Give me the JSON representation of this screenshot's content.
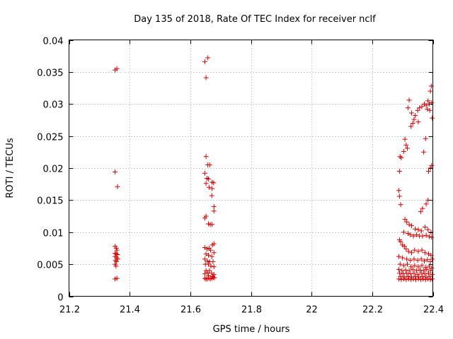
{
  "chart_data": {
    "type": "scatter",
    "title": "Day 135 of 2018, Rate Of TEC Index for receiver nclf",
    "xlabel": "GPS time / hours",
    "ylabel": "ROTI / TECUs",
    "xlim": [
      21.2,
      22.4
    ],
    "ylim": [
      0,
      0.04
    ],
    "grid": true,
    "marker": "+",
    "color": "#d40000",
    "x_ticks": [
      21.2,
      21.4,
      21.6,
      21.8,
      22,
      22.2,
      22.4
    ],
    "x_tick_labels": [
      "21.2",
      "21.4",
      "21.6",
      "21.8",
      "22",
      "22.2",
      "22.4"
    ],
    "y_ticks": [
      0,
      0.005,
      0.01,
      0.015,
      0.02,
      0.025,
      0.03,
      0.035,
      0.04
    ],
    "y_tick_labels": [
      "0",
      "0.005",
      "0.01",
      "0.015",
      "0.02",
      "0.025",
      "0.03",
      "0.035",
      "0.04"
    ],
    "series": [
      {
        "name": "ROTI",
        "points": [
          [
            21.352,
            0.0353
          ],
          [
            21.358,
            0.0355
          ],
          [
            21.352,
            0.0194
          ],
          [
            21.36,
            0.0171
          ],
          [
            21.352,
            0.0078
          ],
          [
            21.356,
            0.0075
          ],
          [
            21.358,
            0.0072
          ],
          [
            21.352,
            0.0067
          ],
          [
            21.355,
            0.0066
          ],
          [
            21.36,
            0.0065
          ],
          [
            21.352,
            0.0062
          ],
          [
            21.357,
            0.006
          ],
          [
            21.361,
            0.0058
          ],
          [
            21.353,
            0.0056
          ],
          [
            21.356,
            0.0054
          ],
          [
            21.352,
            0.005
          ],
          [
            21.355,
            0.0047
          ],
          [
            21.352,
            0.0027
          ],
          [
            21.358,
            0.0028
          ],
          [
            21.648,
            0.0366
          ],
          [
            21.658,
            0.0372
          ],
          [
            21.652,
            0.0341
          ],
          [
            21.652,
            0.0218
          ],
          [
            21.658,
            0.0205
          ],
          [
            21.664,
            0.0205
          ],
          [
            21.648,
            0.0192
          ],
          [
            21.655,
            0.0184
          ],
          [
            21.66,
            0.0183
          ],
          [
            21.672,
            0.0178
          ],
          [
            21.652,
            0.0176
          ],
          [
            21.677,
            0.0177
          ],
          [
            21.662,
            0.017
          ],
          [
            21.672,
            0.0168
          ],
          [
            21.671,
            0.0157
          ],
          [
            21.678,
            0.014
          ],
          [
            21.678,
            0.0133
          ],
          [
            21.652,
            0.0125
          ],
          [
            21.648,
            0.0122
          ],
          [
            21.66,
            0.0113
          ],
          [
            21.666,
            0.0112
          ],
          [
            21.672,
            0.0112
          ],
          [
            21.678,
            0.0082
          ],
          [
            21.673,
            0.008
          ],
          [
            21.648,
            0.0076
          ],
          [
            21.655,
            0.0074
          ],
          [
            21.662,
            0.0075
          ],
          [
            21.667,
            0.0072
          ],
          [
            21.678,
            0.0068
          ],
          [
            21.652,
            0.0066
          ],
          [
            21.66,
            0.0064
          ],
          [
            21.671,
            0.0062
          ],
          [
            21.648,
            0.0058
          ],
          [
            21.656,
            0.0055
          ],
          [
            21.664,
            0.0054
          ],
          [
            21.675,
            0.0054
          ],
          [
            21.65,
            0.005
          ],
          [
            21.66,
            0.005
          ],
          [
            21.668,
            0.0047
          ],
          [
            21.678,
            0.0046
          ],
          [
            21.652,
            0.004
          ],
          [
            21.663,
            0.004
          ],
          [
            21.648,
            0.0035
          ],
          [
            21.657,
            0.0037
          ],
          [
            21.67,
            0.0036
          ],
          [
            21.678,
            0.0034
          ],
          [
            21.66,
            0.0032
          ],
          [
            21.674,
            0.0031
          ],
          [
            21.648,
            0.0028
          ],
          [
            21.652,
            0.0027
          ],
          [
            21.656,
            0.0027
          ],
          [
            21.661,
            0.0028
          ],
          [
            21.666,
            0.0027
          ],
          [
            21.671,
            0.0028
          ],
          [
            21.676,
            0.0029
          ],
          [
            21.68,
            0.0029
          ],
          [
            22.395,
            0.0328
          ],
          [
            22.392,
            0.032
          ],
          [
            22.384,
            0.0305
          ],
          [
            22.378,
            0.0298
          ],
          [
            22.388,
            0.03
          ],
          [
            22.396,
            0.0302
          ],
          [
            22.372,
            0.03
          ],
          [
            22.364,
            0.0296
          ],
          [
            22.382,
            0.0292
          ],
          [
            22.39,
            0.029
          ],
          [
            22.356,
            0.0294
          ],
          [
            22.35,
            0.029
          ],
          [
            22.342,
            0.0282
          ],
          [
            22.338,
            0.0276
          ],
          [
            22.334,
            0.027
          ],
          [
            22.328,
            0.0265
          ],
          [
            22.322,
            0.0306
          ],
          [
            22.318,
            0.0294
          ],
          [
            22.33,
            0.0286
          ],
          [
            22.352,
            0.0272
          ],
          [
            22.398,
            0.0278
          ],
          [
            22.376,
            0.0246
          ],
          [
            22.37,
            0.0225
          ],
          [
            22.392,
            0.02
          ],
          [
            22.396,
            0.0204
          ],
          [
            22.386,
            0.0195
          ],
          [
            22.308,
            0.0245
          ],
          [
            22.312,
            0.0236
          ],
          [
            22.316,
            0.0231
          ],
          [
            22.304,
            0.0226
          ],
          [
            22.292,
            0.0218
          ],
          [
            22.296,
            0.0216
          ],
          [
            22.29,
            0.0195
          ],
          [
            22.288,
            0.0165
          ],
          [
            22.29,
            0.0156
          ],
          [
            22.294,
            0.0143
          ],
          [
            22.384,
            0.015
          ],
          [
            22.378,
            0.0144
          ],
          [
            22.366,
            0.0137
          ],
          [
            22.36,
            0.0132
          ],
          [
            22.308,
            0.012
          ],
          [
            22.314,
            0.0116
          ],
          [
            22.322,
            0.0112
          ],
          [
            22.33,
            0.011
          ],
          [
            22.342,
            0.0105
          ],
          [
            22.352,
            0.0104
          ],
          [
            22.362,
            0.0102
          ],
          [
            22.374,
            0.0108
          ],
          [
            22.384,
            0.0104
          ],
          [
            22.394,
            0.01
          ],
          [
            22.304,
            0.01
          ],
          [
            22.318,
            0.0098
          ],
          [
            22.326,
            0.0096
          ],
          [
            22.336,
            0.0094
          ],
          [
            22.346,
            0.0096
          ],
          [
            22.356,
            0.0094
          ],
          [
            22.366,
            0.0094
          ],
          [
            22.378,
            0.0095
          ],
          [
            22.388,
            0.0093
          ],
          [
            22.396,
            0.0092
          ],
          [
            22.29,
            0.0088
          ],
          [
            22.294,
            0.0085
          ],
          [
            22.3,
            0.008
          ],
          [
            22.306,
            0.0078
          ],
          [
            22.312,
            0.0074
          ],
          [
            22.32,
            0.007
          ],
          [
            22.33,
            0.0068
          ],
          [
            22.34,
            0.0072
          ],
          [
            22.352,
            0.007
          ],
          [
            22.364,
            0.0072
          ],
          [
            22.374,
            0.0068
          ],
          [
            22.386,
            0.0066
          ],
          [
            22.394,
            0.0064
          ],
          [
            22.288,
            0.0062
          ],
          [
            22.3,
            0.006
          ],
          [
            22.314,
            0.0058
          ],
          [
            22.326,
            0.0056
          ],
          [
            22.338,
            0.0058
          ],
          [
            22.35,
            0.0056
          ],
          [
            22.362,
            0.0058
          ],
          [
            22.372,
            0.0055
          ],
          [
            22.382,
            0.0057
          ],
          [
            22.392,
            0.0054
          ],
          [
            22.398,
            0.0058
          ],
          [
            22.292,
            0.005
          ],
          [
            22.304,
            0.0048
          ],
          [
            22.316,
            0.005
          ],
          [
            22.328,
            0.0046
          ],
          [
            22.34,
            0.0048
          ],
          [
            22.352,
            0.0046
          ],
          [
            22.364,
            0.0048
          ],
          [
            22.376,
            0.0045
          ],
          [
            22.388,
            0.0047
          ],
          [
            22.396,
            0.0044
          ],
          [
            22.288,
            0.0042
          ],
          [
            22.298,
            0.004
          ],
          [
            22.31,
            0.0041
          ],
          [
            22.322,
            0.004
          ],
          [
            22.334,
            0.0042
          ],
          [
            22.346,
            0.004
          ],
          [
            22.358,
            0.0041
          ],
          [
            22.37,
            0.004
          ],
          [
            22.38,
            0.0042
          ],
          [
            22.392,
            0.004
          ],
          [
            22.29,
            0.0036
          ],
          [
            22.302,
            0.0035
          ],
          [
            22.314,
            0.0036
          ],
          [
            22.326,
            0.0035
          ],
          [
            22.338,
            0.0036
          ],
          [
            22.35,
            0.0034
          ],
          [
            22.362,
            0.0036
          ],
          [
            22.374,
            0.0035
          ],
          [
            22.386,
            0.0036
          ],
          [
            22.398,
            0.0034
          ],
          [
            22.294,
            0.0031
          ],
          [
            22.306,
            0.003
          ],
          [
            22.318,
            0.0031
          ],
          [
            22.33,
            0.003
          ],
          [
            22.342,
            0.0031
          ],
          [
            22.354,
            0.003
          ],
          [
            22.366,
            0.0031
          ],
          [
            22.378,
            0.003
          ],
          [
            22.39,
            0.0031
          ],
          [
            22.288,
            0.0027
          ],
          [
            22.296,
            0.0026
          ],
          [
            22.304,
            0.0027
          ],
          [
            22.312,
            0.0026
          ],
          [
            22.32,
            0.0027
          ],
          [
            22.328,
            0.0026
          ],
          [
            22.336,
            0.0027
          ],
          [
            22.344,
            0.0026
          ],
          [
            22.352,
            0.0027
          ],
          [
            22.36,
            0.0026
          ],
          [
            22.368,
            0.0027
          ],
          [
            22.376,
            0.0026
          ],
          [
            22.384,
            0.0027
          ],
          [
            22.392,
            0.0026
          ],
          [
            22.398,
            0.0027
          ]
        ]
      }
    ]
  }
}
